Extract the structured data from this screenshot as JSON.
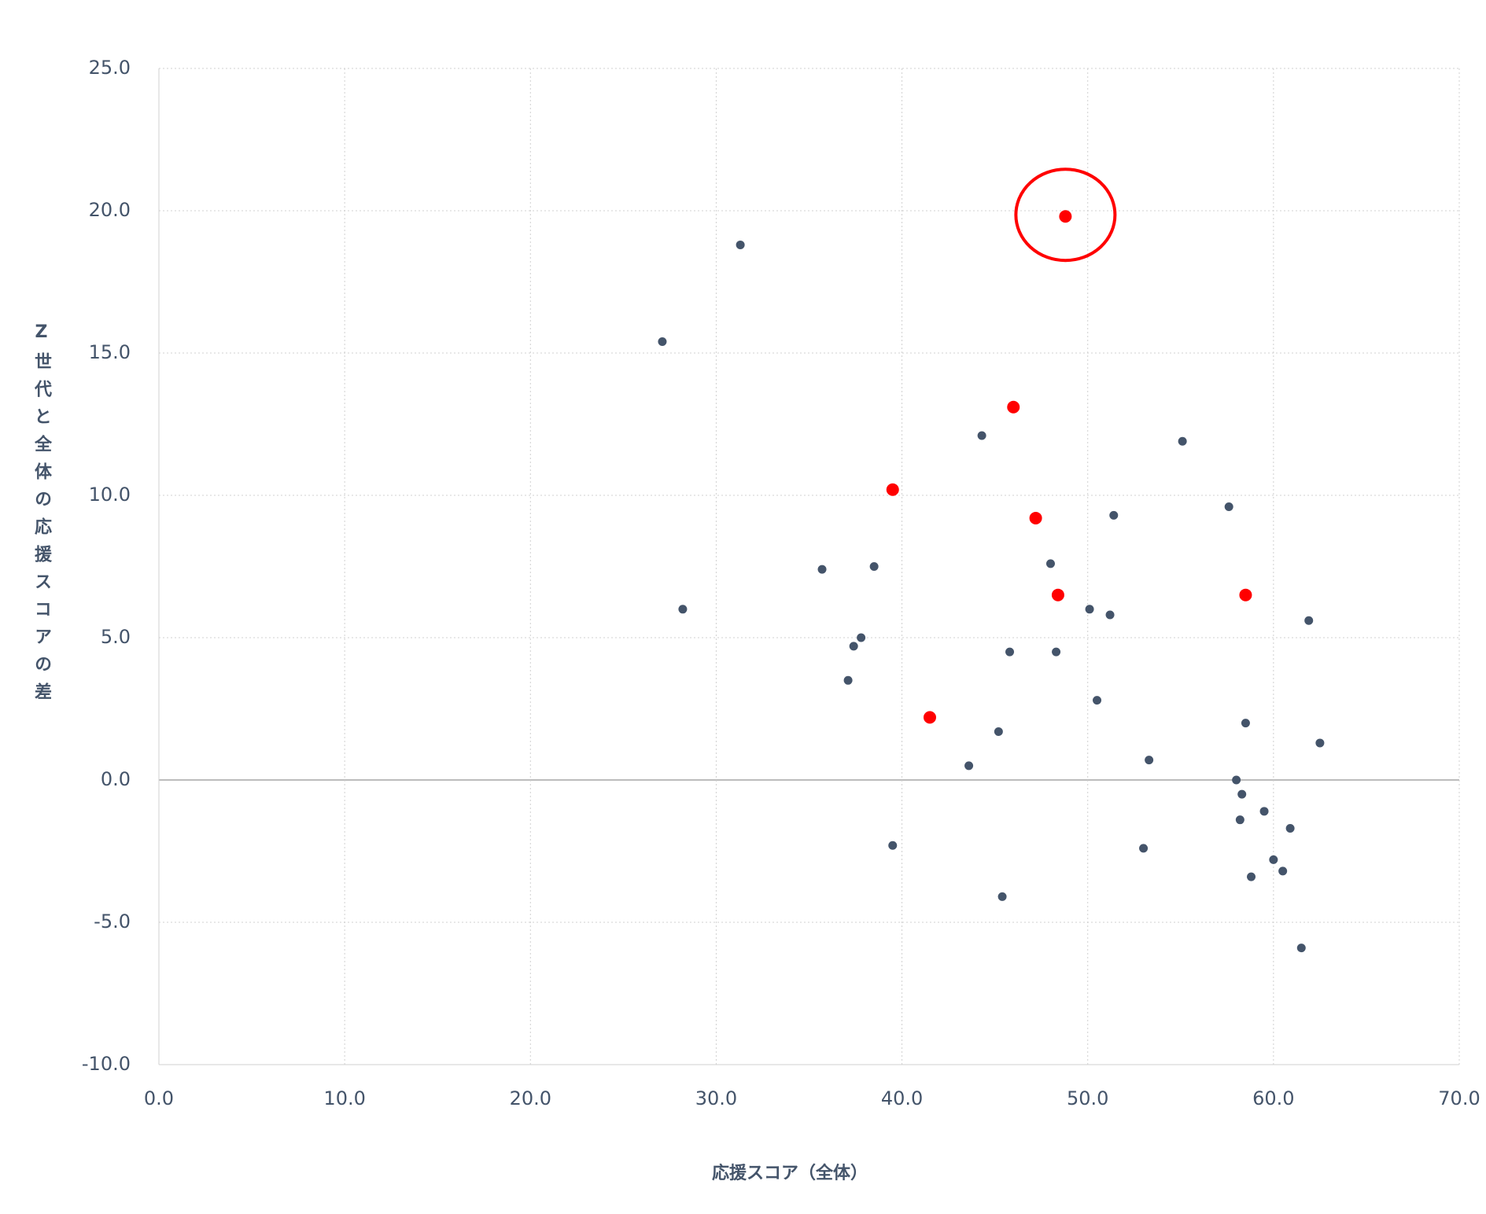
{
  "chart_data": {
    "type": "scatter",
    "xlabel": "応援スコア（全体）",
    "ylabel": "Z世代と全体の応援スコアの差",
    "xlim": [
      0,
      70
    ],
    "ylim": [
      -10,
      25
    ],
    "xticks": [
      {
        "value": 0,
        "label": "0.0"
      },
      {
        "value": 10,
        "label": "10.0"
      },
      {
        "value": 20,
        "label": "20.0"
      },
      {
        "value": 30,
        "label": "30.0"
      },
      {
        "value": 40,
        "label": "40.0"
      },
      {
        "value": 50,
        "label": "50.0"
      },
      {
        "value": 60,
        "label": "60.0"
      },
      {
        "value": 70,
        "label": "70.0"
      }
    ],
    "yticks": [
      {
        "value": -10,
        "label": "-10.0"
      },
      {
        "value": -5,
        "label": "-5.0"
      },
      {
        "value": 0,
        "label": "0.0"
      },
      {
        "value": 5,
        "label": "5.0"
      },
      {
        "value": 10,
        "label": "10.0"
      },
      {
        "value": 15,
        "label": "15.0"
      },
      {
        "value": 20,
        "label": "20.0"
      },
      {
        "value": 25,
        "label": "25.0"
      }
    ],
    "grid": true,
    "series": [
      {
        "color": "#44546a",
        "x": [
          31.3,
          27.1,
          28.2,
          35.7,
          38.5,
          37.8,
          37.4,
          37.1,
          44.3,
          55.1,
          57.6,
          51.4,
          48.0,
          50.1,
          51.2,
          45.8,
          48.3,
          61.9,
          50.5,
          45.2,
          43.6,
          53.3,
          58.5,
          62.5,
          58.0,
          58.3,
          59.5,
          58.2,
          60.9,
          39.5,
          53.0,
          60.0,
          60.5,
          58.8,
          45.4,
          61.5
        ],
        "values": [
          18.8,
          15.4,
          6.0,
          7.4,
          7.5,
          5.0,
          4.7,
          3.5,
          12.1,
          11.9,
          9.6,
          9.3,
          7.6,
          6.0,
          5.8,
          4.5,
          4.5,
          5.6,
          2.8,
          1.7,
          0.5,
          0.7,
          2.0,
          1.3,
          0.0,
          -0.5,
          -1.1,
          -1.4,
          -1.7,
          -2.3,
          -2.4,
          -2.8,
          -3.2,
          -3.4,
          -4.1,
          -5.9
        ]
      },
      {
        "color": "#ff0000",
        "x": [
          48.8,
          46.0,
          39.5,
          47.2,
          48.4,
          58.5,
          41.5
        ],
        "values": [
          19.8,
          13.1,
          10.2,
          9.2,
          6.5,
          6.5,
          2.2
        ]
      }
    ]
  }
}
